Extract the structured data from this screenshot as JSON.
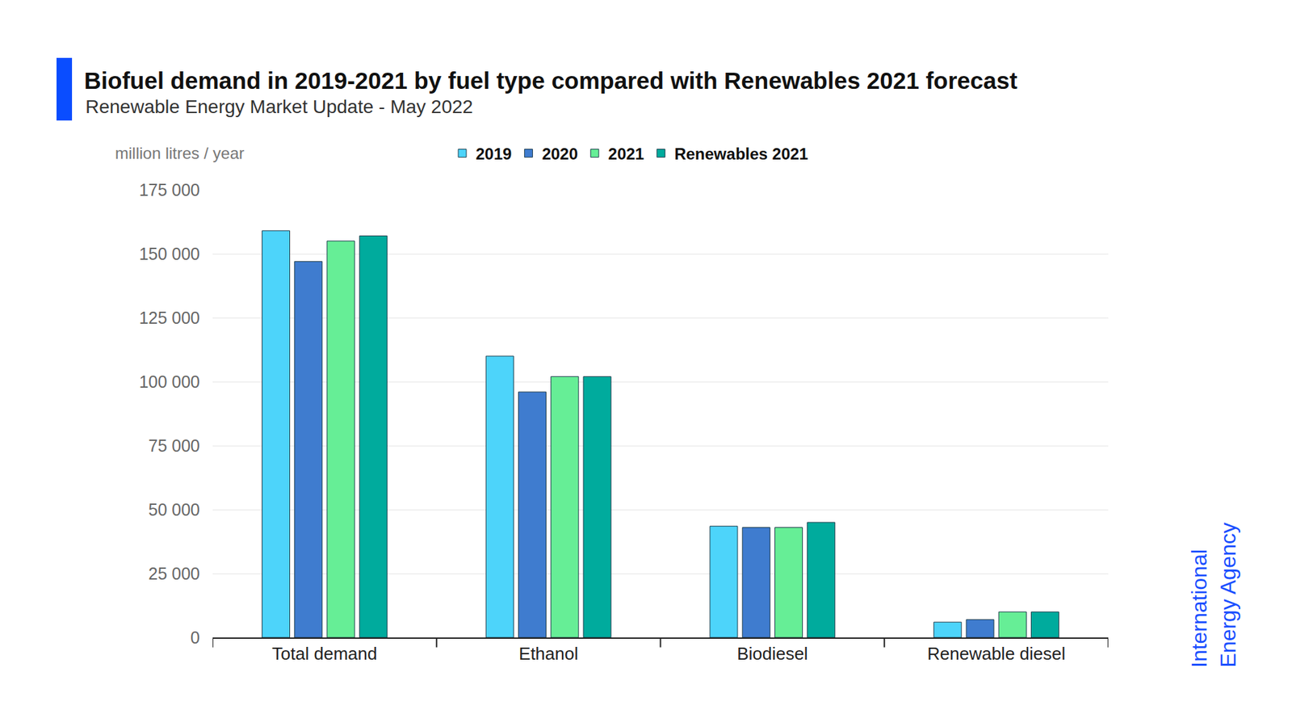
{
  "chart_data": {
    "type": "bar",
    "title": "Biofuel demand in 2019-2021 by fuel type compared with Renewables 2021 forecast",
    "subtitle": "Renewable Energy Market Update - May 2022",
    "ylabel": "million litres / year",
    "categories": [
      "Total demand",
      "Ethanol",
      "Biodiesel",
      "Renewable diesel"
    ],
    "series": [
      {
        "name": "2019",
        "color": "#4dd4fa",
        "values": [
          159000,
          110000,
          43500,
          6000
        ]
      },
      {
        "name": "2020",
        "color": "#3f7ccf",
        "values": [
          147000,
          96000,
          43000,
          7000
        ]
      },
      {
        "name": "2021",
        "color": "#66ee96",
        "values": [
          155000,
          102000,
          43000,
          10000
        ]
      },
      {
        "name": "Renewables 2021",
        "color": "#00ab9d",
        "values": [
          157000,
          102000,
          45000,
          10000
        ]
      }
    ],
    "ylim": [
      0,
      175000
    ],
    "yticks": [
      0,
      {
        "value": 25000,
        "label": "25 000"
      },
      {
        "value": 50000,
        "label": "50 000"
      },
      {
        "value": 75000,
        "label": "75 000"
      },
      {
        "value": 100000,
        "label": "100 000"
      },
      {
        "value": 125000,
        "label": "125 000"
      },
      {
        "value": 150000,
        "label": "150 000"
      },
      {
        "value": 175000,
        "label": "175 000"
      }
    ],
    "grid": true,
    "legend": "top",
    "annotations": [
      "International",
      "Energy Agency"
    ]
  }
}
